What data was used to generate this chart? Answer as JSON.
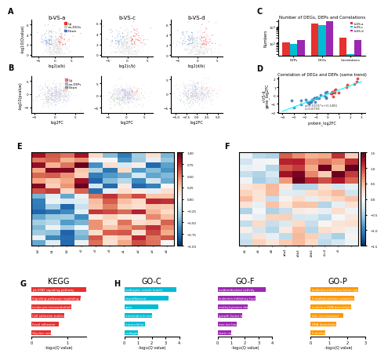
{
  "panel_G": {
    "title": "KEGG",
    "categories": [
      "Jak-STAT signaling pathway",
      "Signaling pathways regulating pluripotency",
      "Leukocyte transendothelial migration",
      "Cell adhesion molecules (CAMs)",
      "Focal adhesion",
      "Glycine, serine and threonine metabolism"
    ],
    "values": [
      1.55,
      1.35,
      1.1,
      0.9,
      0.75,
      0.55
    ],
    "color": "#e83030",
    "xlabel": "-log₁₀(Q value)",
    "xlim": [
      0,
      1.5
    ]
  },
  "panel_H_GOC": {
    "title": "GO-C",
    "categories": [
      "endocytic vesicle lumen",
      "neurofilament",
      "axon",
      "interleukin-6 receptor complex",
      "intracellular ferritin complex",
      "collagen-containing extracellular matrix"
    ],
    "values": [
      3.8,
      3.2,
      2.5,
      2.0,
      1.5,
      1.0
    ],
    "color": "#00bcd4",
    "xlabel": "-log₁₀(Q value)",
    "xlim": [
      0,
      4
    ]
  },
  "panel_H_GOF": {
    "title": "GO-F",
    "categories": [
      "oxidoreductase activity",
      "leukemia inhibitory factor receptor activity",
      "methylcytosine dioxygenase activity",
      "growth factor binding",
      "iron ion binding",
      "ferric iron binding"
    ],
    "values": [
      3.5,
      2.8,
      2.2,
      1.8,
      1.4,
      1.0
    ],
    "color": "#9c27b0",
    "xlabel": "-log₁₀(Q value)",
    "xlim": [
      0,
      4
    ]
  },
  "panel_H_GOP": {
    "title": "GO-P",
    "categories": [
      "leukemia inhibitory factor signaling pathway",
      "5-methylcytosine catabolic process",
      "oxidative DNA demethylation",
      "iron ion transport",
      "DNA demethylation",
      "5-methylcytosine metabolic process"
    ],
    "values": [
      2.6,
      2.4,
      2.2,
      1.8,
      1.4,
      0.8
    ],
    "color": "#ff9800",
    "xlabel": "-log₁₀(Q value)",
    "xlim": [
      0,
      3
    ]
  },
  "bg_color": "#ffffff",
  "title_fontsize": 7,
  "label_fontsize": 5,
  "bar_height": 0.6
}
